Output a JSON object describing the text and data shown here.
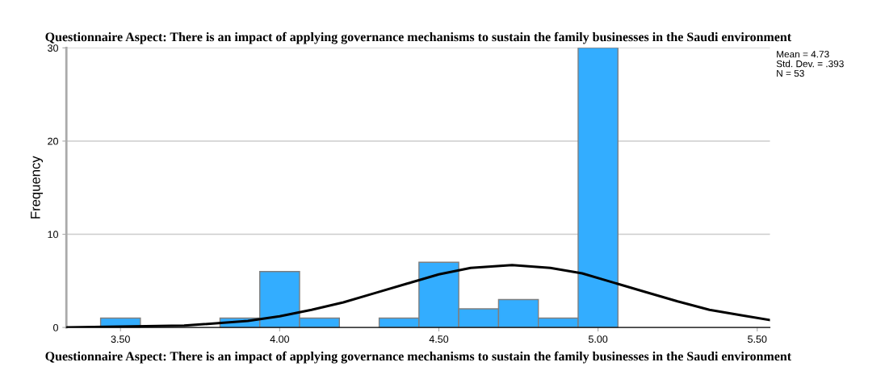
{
  "chart_data": {
    "type": "histogram",
    "title": "Questionnaire Aspect: There is an impact of applying governance mechanisms to sustain the family businesses in the Saudi environment",
    "xlabel": "Questionnaire Aspect: There is an impact of applying governance mechanisms to sustain the family businesses in the Saudi environment",
    "ylabel": "Frequency",
    "series": [
      {
        "type": "histogram",
        "color": "#33adff",
        "bins": [
          3.4375,
          3.5625,
          3.6875,
          3.8125,
          3.9375,
          4.0625,
          4.1875,
          4.3125,
          4.4375,
          4.5625,
          4.6875,
          4.8125,
          4.9375,
          5.0625
        ],
        "values": [
          1,
          0,
          0,
          1,
          6,
          1,
          0,
          1,
          7,
          2,
          3,
          1,
          30
        ]
      },
      {
        "type": "line",
        "color": "#000000",
        "x": [
          3.33,
          3.5,
          3.7,
          3.9,
          4.0,
          4.1,
          4.2,
          4.3,
          4.4,
          4.5,
          4.6,
          4.73,
          4.85,
          4.95,
          5.05,
          5.15,
          5.25,
          5.35,
          5.45,
          5.54
        ],
        "values": [
          0,
          0.1,
          0.2,
          0.7,
          1.2,
          1.9,
          2.7,
          3.7,
          4.7,
          5.7,
          6.4,
          6.7,
          6.4,
          5.8,
          4.8,
          3.8,
          2.8,
          1.9,
          1.3,
          0.8
        ]
      }
    ],
    "annotations": [
      "Mean = 4.73",
      "Std. Dev. = .393",
      "N = 53"
    ],
    "xlim": [
      3.33,
      5.54
    ],
    "ylim": [
      0,
      30
    ],
    "xticks": [
      {
        "value": 3.5,
        "label": "3.50"
      },
      {
        "value": 4.0,
        "label": "4.00"
      },
      {
        "value": 4.5,
        "label": "4.50"
      },
      {
        "value": 5.0,
        "label": "5.00"
      },
      {
        "value": 5.5,
        "label": "5.50"
      }
    ],
    "yticks": [
      0,
      10,
      20,
      30
    ],
    "grid": "y"
  }
}
